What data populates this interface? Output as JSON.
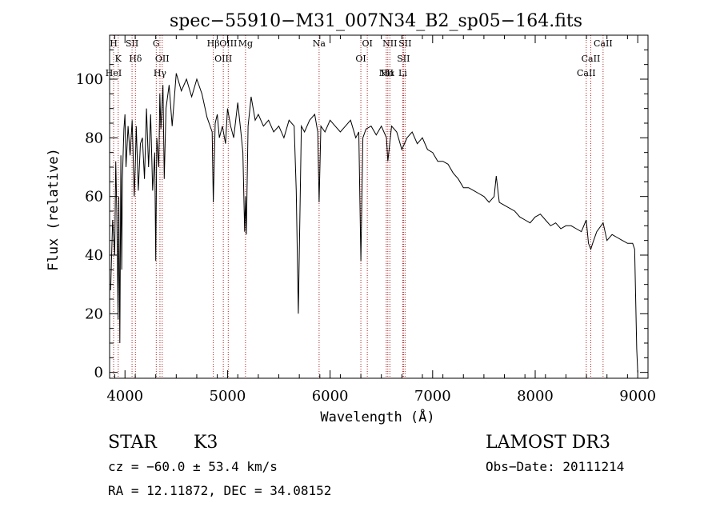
{
  "chart_data": {
    "type": "line",
    "title": "spec−55910−M31_007N34_B2_sp05−164.fits",
    "xlabel": "Wavelength (Å)",
    "ylabel": "Flux (relative)",
    "xlim": [
      3850,
      9100
    ],
    "ylim": [
      -2,
      115
    ],
    "x_ticks": [
      4000,
      5000,
      6000,
      7000,
      8000,
      9000
    ],
    "x_tick_labels": [
      "4000",
      "5000",
      "6000",
      "7000",
      "8000",
      "9000"
    ],
    "y_ticks": [
      0,
      20,
      40,
      60,
      80,
      100
    ],
    "y_tick_labels": [
      "0",
      "20",
      "40",
      "60",
      "80",
      "100"
    ],
    "series": [
      {
        "name": "flux",
        "x": [
          3860,
          3880,
          3900,
          3910,
          3920,
          3933,
          3940,
          3950,
          3960,
          3968,
          3975,
          3990,
          4000,
          4010,
          4030,
          4050,
          4070,
          4090,
          4101,
          4110,
          4130,
          4150,
          4170,
          4190,
          4210,
          4230,
          4250,
          4270,
          4290,
          4300,
          4310,
          4330,
          4340,
          4350,
          4370,
          4383,
          4400,
          4430,
          4460,
          4500,
          4550,
          4600,
          4650,
          4700,
          4750,
          4800,
          4850,
          4861,
          4880,
          4900,
          4920,
          4950,
          4980,
          5000,
          5030,
          5060,
          5100,
          5130,
          5150,
          5167,
          5175,
          5183,
          5200,
          5230,
          5270,
          5300,
          5350,
          5400,
          5450,
          5500,
          5550,
          5600,
          5650,
          5670,
          5690,
          5720,
          5750,
          5800,
          5850,
          5880,
          5893,
          5910,
          5950,
          6000,
          6050,
          6100,
          6150,
          6200,
          6250,
          6280,
          6300,
          6320,
          6350,
          6400,
          6450,
          6500,
          6550,
          6563,
          6600,
          6650,
          6700,
          6750,
          6800,
          6850,
          6900,
          6950,
          7000,
          7050,
          7100,
          7150,
          7200,
          7250,
          7300,
          7350,
          7400,
          7450,
          7500,
          7550,
          7600,
          7620,
          7650,
          7700,
          7750,
          7800,
          7850,
          7900,
          7950,
          8000,
          8050,
          8100,
          8150,
          8200,
          8250,
          8300,
          8350,
          8400,
          8450,
          8498,
          8520,
          8542,
          8560,
          8600,
          8662,
          8700,
          8750,
          8800,
          8850,
          8900,
          8950,
          8970,
          8990,
          9000
        ],
        "y": [
          28,
          52,
          40,
          72,
          55,
          18,
          60,
          10,
          74,
          35,
          66,
          83,
          88,
          70,
          84,
          74,
          86,
          60,
          71,
          84,
          62,
          78,
          80,
          66,
          90,
          70,
          88,
          62,
          75,
          38,
          80,
          70,
          95,
          83,
          98,
          66,
          90,
          98,
          84,
          102,
          96,
          100,
          94,
          100,
          95,
          87,
          82,
          58,
          85,
          88,
          80,
          84,
          78,
          90,
          84,
          80,
          92,
          82,
          75,
          48,
          60,
          47,
          84,
          94,
          86,
          88,
          84,
          86,
          82,
          84,
          80,
          86,
          84,
          62,
          20,
          84,
          82,
          86,
          88,
          82,
          58,
          84,
          82,
          86,
          84,
          82,
          84,
          86,
          80,
          82,
          38,
          80,
          83,
          84,
          81,
          84,
          80,
          72,
          84,
          82,
          76,
          80,
          82,
          78,
          80,
          76,
          75,
          72,
          72,
          71,
          68,
          66,
          63,
          63,
          62,
          61,
          60,
          58,
          60,
          67,
          58,
          57,
          56,
          55,
          53,
          52,
          51,
          53,
          54,
          52,
          50,
          51,
          49,
          50,
          50,
          49,
          48,
          52,
          44,
          42,
          44,
          48,
          51,
          45,
          47,
          46,
          45,
          44,
          44,
          42,
          8,
          0
        ]
      }
    ],
    "lines": [
      {
        "label": "H",
        "x": 3889
      },
      {
        "label": "K",
        "x": 3934
      },
      {
        "label": "HeI",
        "x": 3889
      },
      {
        "label": "SII",
        "x": 4069
      },
      {
        "label": "Hδ",
        "x": 4102
      },
      {
        "label": "G",
        "x": 4305
      },
      {
        "label": "OII",
        "x": 4363
      },
      {
        "label": "Hγ",
        "x": 4341
      },
      {
        "label": "Hβ",
        "x": 4861
      },
      {
        "label": "OIII",
        "x": 5007
      },
      {
        "label": "OIII",
        "x": 4959
      },
      {
        "label": "Mg",
        "x": 5175
      },
      {
        "label": "Na",
        "x": 5893
      },
      {
        "label": "OI",
        "x": 6363
      },
      {
        "label": "OI",
        "x": 6300
      },
      {
        "label": "NII",
        "x": 6583
      },
      {
        "label": "SII",
        "x": 6716
      },
      {
        "label": "Hα",
        "x": 6563
      },
      {
        "label": "SII",
        "x": 6731
      },
      {
        "label": "NII",
        "x": 6548
      },
      {
        "label": "Li",
        "x": 6708
      },
      {
        "label": "CaII",
        "x": 8662
      },
      {
        "label": "CaII",
        "x": 8542
      },
      {
        "label": "CaII",
        "x": 8498
      }
    ]
  },
  "info": {
    "class_label": "STAR",
    "subclass_label": "K3",
    "survey_label": "LAMOST DR3",
    "cz_text": "cz = −60.0 ± 53.4 km/s",
    "obsdate_text": "Obs−Date: 20111214",
    "radec_text": "RA =  12.11872, DEC =  34.08152"
  },
  "colors": {
    "line_marker": "#b22222",
    "spectrum": "#000000",
    "axes": "#000000"
  }
}
